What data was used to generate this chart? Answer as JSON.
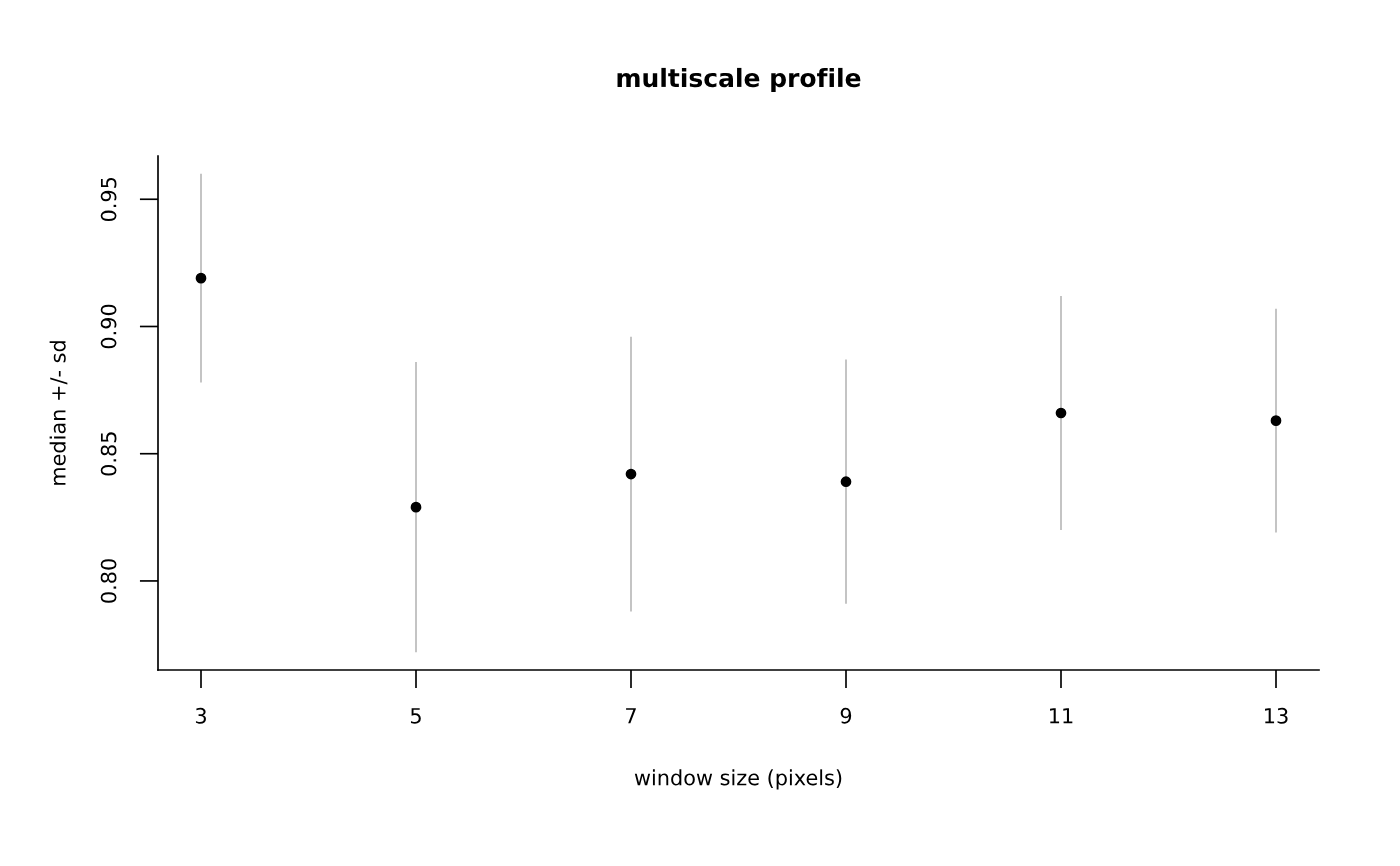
{
  "chart_data": {
    "type": "scatter",
    "title": "multiscale profile",
    "xlabel": "window size (pixels)",
    "ylabel": "median +/- sd",
    "x": [
      3,
      5,
      7,
      9,
      11,
      13
    ],
    "values": [
      0.919,
      0.829,
      0.842,
      0.839,
      0.866,
      0.863
    ],
    "errors": [
      0.041,
      0.057,
      0.054,
      0.048,
      0.046,
      0.044
    ],
    "color": "#000000",
    "marker": "circle",
    "grid": false,
    "xlim": [
      2.6,
      13.4
    ],
    "ylim": [
      0.765,
      0.967
    ],
    "xticks": [
      3,
      5,
      7,
      9,
      11,
      13
    ],
    "yticks": [
      {
        "value": 0.8,
        "label": "0.80"
      },
      0.85,
      {
        "value": 0.9,
        "label": "0.90"
      },
      0.95
    ]
  }
}
